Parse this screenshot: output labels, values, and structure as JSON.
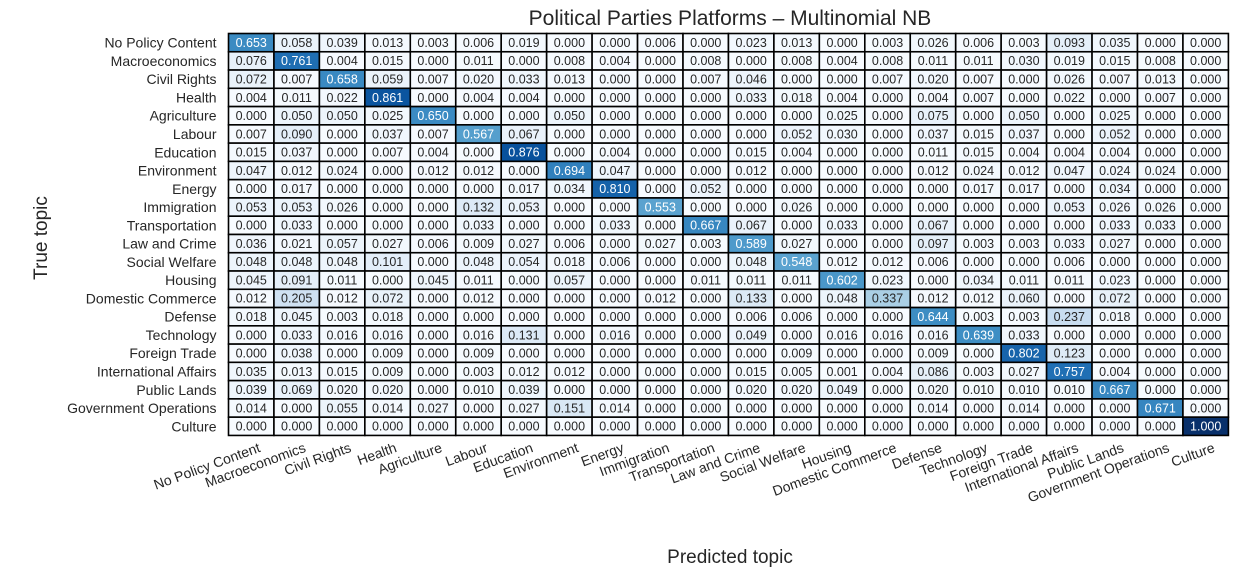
{
  "chart_data": {
    "type": "heatmap",
    "title": "Political Parties Platforms – Multinomial NB",
    "xlabel": "Predicted topic",
    "ylabel": "True topic",
    "colormap": "Blues",
    "value_range": [
      0,
      1
    ],
    "categories": [
      "No Policy Content",
      "Macroeconomics",
      "Civil Rights",
      "Health",
      "Agriculture",
      "Labour",
      "Education",
      "Environment",
      "Energy",
      "Immigration",
      "Transportation",
      "Law and Crime",
      "Social Welfare",
      "Housing",
      "Domestic Commerce",
      "Defense",
      "Technology",
      "Foreign Trade",
      "International Affairs",
      "Public Lands",
      "Government Operations",
      "Culture"
    ],
    "matrix": [
      [
        "0.653",
        "0.058",
        "0.039",
        "0.013",
        "0.003",
        "0.006",
        "0.019",
        "0.000",
        "0.000",
        "0.006",
        "0.000",
        "0.023",
        "0.013",
        "0.000",
        "0.003",
        "0.026",
        "0.006",
        "0.003",
        "0.093",
        "0.035",
        "0.000",
        "0.000"
      ],
      [
        "0.076",
        "0.761",
        "0.004",
        "0.015",
        "0.000",
        "0.011",
        "0.000",
        "0.008",
        "0.004",
        "0.000",
        "0.008",
        "0.000",
        "0.008",
        "0.004",
        "0.008",
        "0.011",
        "0.011",
        "0.030",
        "0.019",
        "0.015",
        "0.008",
        "0.000"
      ],
      [
        "0.072",
        "0.007",
        "0.658",
        "0.059",
        "0.007",
        "0.020",
        "0.033",
        "0.013",
        "0.000",
        "0.000",
        "0.007",
        "0.046",
        "0.000",
        "0.000",
        "0.007",
        "0.020",
        "0.007",
        "0.000",
        "0.026",
        "0.007",
        "0.013",
        "0.000"
      ],
      [
        "0.004",
        "0.011",
        "0.022",
        "0.861",
        "0.000",
        "0.004",
        "0.004",
        "0.000",
        "0.000",
        "0.000",
        "0.000",
        "0.033",
        "0.018",
        "0.004",
        "0.000",
        "0.004",
        "0.007",
        "0.000",
        "0.022",
        "0.000",
        "0.007",
        "0.000"
      ],
      [
        "0.000",
        "0.050",
        "0.050",
        "0.025",
        "0.650",
        "0.000",
        "0.000",
        "0.050",
        "0.000",
        "0.000",
        "0.000",
        "0.000",
        "0.000",
        "0.025",
        "0.000",
        "0.075",
        "0.000",
        "0.050",
        "0.000",
        "0.025",
        "0.000",
        "0.000"
      ],
      [
        "0.007",
        "0.090",
        "0.000",
        "0.037",
        "0.007",
        "0.567",
        "0.067",
        "0.000",
        "0.000",
        "0.000",
        "0.000",
        "0.000",
        "0.052",
        "0.030",
        "0.000",
        "0.037",
        "0.015",
        "0.037",
        "0.000",
        "0.052",
        "0.000",
        "0.000"
      ],
      [
        "0.015",
        "0.037",
        "0.000",
        "0.007",
        "0.004",
        "0.000",
        "0.876",
        "0.000",
        "0.004",
        "0.000",
        "0.000",
        "0.015",
        "0.004",
        "0.000",
        "0.000",
        "0.011",
        "0.015",
        "0.004",
        "0.004",
        "0.004",
        "0.000",
        "0.000"
      ],
      [
        "0.047",
        "0.012",
        "0.024",
        "0.000",
        "0.012",
        "0.012",
        "0.000",
        "0.694",
        "0.047",
        "0.000",
        "0.000",
        "0.012",
        "0.000",
        "0.000",
        "0.000",
        "0.012",
        "0.024",
        "0.012",
        "0.047",
        "0.024",
        "0.024",
        "0.000"
      ],
      [
        "0.000",
        "0.017",
        "0.000",
        "0.000",
        "0.000",
        "0.000",
        "0.017",
        "0.034",
        "0.810",
        "0.000",
        "0.052",
        "0.000",
        "0.000",
        "0.000",
        "0.000",
        "0.000",
        "0.017",
        "0.017",
        "0.000",
        "0.034",
        "0.000",
        "0.000"
      ],
      [
        "0.053",
        "0.053",
        "0.026",
        "0.000",
        "0.000",
        "0.132",
        "0.053",
        "0.000",
        "0.000",
        "0.553",
        "0.000",
        "0.000",
        "0.026",
        "0.000",
        "0.000",
        "0.000",
        "0.000",
        "0.000",
        "0.053",
        "0.026",
        "0.026",
        "0.000"
      ],
      [
        "0.000",
        "0.033",
        "0.000",
        "0.000",
        "0.000",
        "0.033",
        "0.000",
        "0.000",
        "0.033",
        "0.000",
        "0.667",
        "0.067",
        "0.000",
        "0.033",
        "0.000",
        "0.067",
        "0.000",
        "0.000",
        "0.000",
        "0.033",
        "0.033",
        "0.000"
      ],
      [
        "0.036",
        "0.021",
        "0.057",
        "0.027",
        "0.006",
        "0.009",
        "0.027",
        "0.006",
        "0.000",
        "0.027",
        "0.003",
        "0.589",
        "0.027",
        "0.000",
        "0.000",
        "0.097",
        "0.003",
        "0.003",
        "0.033",
        "0.027",
        "0.000",
        "0.000"
      ],
      [
        "0.048",
        "0.048",
        "0.048",
        "0.101",
        "0.000",
        "0.048",
        "0.054",
        "0.018",
        "0.006",
        "0.000",
        "0.000",
        "0.048",
        "0.548",
        "0.012",
        "0.012",
        "0.006",
        "0.000",
        "0.000",
        "0.006",
        "0.000",
        "0.000",
        "0.000"
      ],
      [
        "0.045",
        "0.091",
        "0.011",
        "0.000",
        "0.045",
        "0.011",
        "0.000",
        "0.057",
        "0.000",
        "0.000",
        "0.011",
        "0.011",
        "0.011",
        "0.602",
        "0.023",
        "0.000",
        "0.034",
        "0.011",
        "0.011",
        "0.023",
        "0.000",
        "0.000"
      ],
      [
        "0.012",
        "0.205",
        "0.012",
        "0.072",
        "0.000",
        "0.012",
        "0.000",
        "0.000",
        "0.000",
        "0.012",
        "0.000",
        "0.133",
        "0.000",
        "0.048",
        "0.337",
        "0.012",
        "0.012",
        "0.060",
        "0.000",
        "0.072",
        "0.000",
        "0.000"
      ],
      [
        "0.018",
        "0.045",
        "0.003",
        "0.018",
        "0.000",
        "0.000",
        "0.000",
        "0.000",
        "0.000",
        "0.000",
        "0.000",
        "0.006",
        "0.006",
        "0.000",
        "0.000",
        "0.644",
        "0.003",
        "0.003",
        "0.237",
        "0.018",
        "0.000",
        "0.000"
      ],
      [
        "0.000",
        "0.033",
        "0.016",
        "0.016",
        "0.000",
        "0.016",
        "0.131",
        "0.000",
        "0.016",
        "0.000",
        "0.000",
        "0.049",
        "0.000",
        "0.016",
        "0.016",
        "0.016",
        "0.639",
        "0.033",
        "0.000",
        "0.000",
        "0.000",
        "0.000"
      ],
      [
        "0.000",
        "0.038",
        "0.000",
        "0.009",
        "0.000",
        "0.009",
        "0.000",
        "0.000",
        "0.000",
        "0.000",
        "0.000",
        "0.000",
        "0.009",
        "0.000",
        "0.000",
        "0.009",
        "0.000",
        "0.802",
        "0.123",
        "0.000",
        "0.000",
        "0.000"
      ],
      [
        "0.035",
        "0.013",
        "0.015",
        "0.009",
        "0.000",
        "0.003",
        "0.012",
        "0.012",
        "0.000",
        "0.000",
        "0.000",
        "0.015",
        "0.005",
        "0.001",
        "0.004",
        "0.086",
        "0.003",
        "0.027",
        "0.757",
        "0.004",
        "0.000",
        "0.000"
      ],
      [
        "0.039",
        "0.069",
        "0.020",
        "0.020",
        "0.000",
        "0.010",
        "0.039",
        "0.000",
        "0.000",
        "0.000",
        "0.000",
        "0.020",
        "0.020",
        "0.049",
        "0.000",
        "0.020",
        "0.010",
        "0.010",
        "0.010",
        "0.667",
        "0.000",
        "0.000"
      ],
      [
        "0.014",
        "0.000",
        "0.055",
        "0.014",
        "0.027",
        "0.000",
        "0.027",
        "0.151",
        "0.014",
        "0.000",
        "0.000",
        "0.000",
        "0.000",
        "0.000",
        "0.000",
        "0.014",
        "0.000",
        "0.014",
        "0.000",
        "0.000",
        "0.671",
        "0.000"
      ],
      [
        "0.000",
        "0.000",
        "0.000",
        "0.000",
        "0.000",
        "0.000",
        "0.000",
        "0.000",
        "0.000",
        "0.000",
        "0.000",
        "0.000",
        "0.000",
        "0.000",
        "0.000",
        "0.000",
        "0.000",
        "0.000",
        "0.000",
        "0.000",
        "0.000",
        "1.000"
      ]
    ]
  }
}
